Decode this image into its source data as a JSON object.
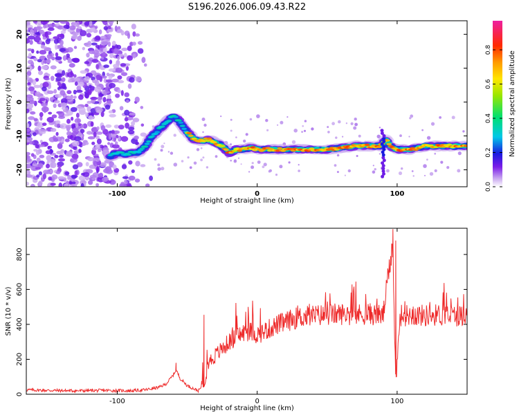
{
  "title": "S196.2026.006.09.43.R22",
  "chart_data": [
    {
      "type": "heatmap",
      "title": "S196.2026.006.09.43.R22",
      "xlabel": "Height of straight line (km)",
      "ylabel": "Frequency (Hz)",
      "xlim": [
        -165,
        150
      ],
      "ylim": [
        -25,
        24
      ],
      "xticks": [
        -100,
        0,
        100
      ],
      "yticks": [
        -20,
        -10,
        0,
        10,
        20
      ],
      "colorbar": {
        "label": "Normalized spectral amplitude",
        "range": [
          0,
          0.97
        ],
        "ticks": [
          0.0,
          0.2,
          0.4,
          0.6,
          0.8
        ]
      },
      "ridge": {
        "x": [
          -105,
          -100,
          -95,
          -90,
          -85,
          -80,
          -75,
          -70,
          -65,
          -60,
          -55,
          -50,
          -45,
          -40,
          -35,
          -30,
          -25,
          -20,
          -15,
          -10,
          -5,
          0,
          10,
          20,
          30,
          40,
          50,
          60,
          70,
          80,
          88,
          92,
          95,
          100,
          110,
          120,
          130,
          140,
          150
        ],
        "y": [
          -16,
          -15,
          -15.5,
          -15,
          -15,
          -13,
          -10,
          -8,
          -6,
          -4,
          -6,
          -9,
          -11,
          -11.5,
          -11,
          -12,
          -13,
          -15,
          -14,
          -14,
          -13.5,
          -14,
          -14,
          -14,
          -14,
          -14,
          -14,
          -13.5,
          -13,
          -13,
          -13,
          -11,
          -13,
          -14,
          -14,
          -13,
          -13,
          -13,
          -13
        ]
      },
      "noise_region_x": [
        -165,
        -75
      ]
    },
    {
      "type": "line",
      "xlabel": "Height of straight line (km)",
      "ylabel": "SNR (10 * v/v)",
      "xlim": [
        -165,
        150
      ],
      "ylim": [
        0,
        950
      ],
      "xticks": [
        -100,
        0,
        100
      ],
      "yticks": [
        0,
        200,
        400,
        600,
        800
      ],
      "series": [
        {
          "name": "SNR",
          "color": "#ee2a2a",
          "x": [
            -165,
            -150,
            -130,
            -110,
            -90,
            -80,
            -70,
            -65,
            -60,
            -58,
            -55,
            -50,
            -45,
            -42,
            -38,
            -35,
            -30,
            -25,
            -20,
            -15,
            -10,
            -5,
            0,
            5,
            10,
            15,
            20,
            25,
            30,
            40,
            50,
            60,
            70,
            80,
            90,
            94,
            97,
            99,
            102,
            110,
            120,
            130,
            140,
            150
          ],
          "y": [
            25,
            22,
            20,
            22,
            20,
            25,
            40,
            60,
            110,
            140,
            90,
            50,
            30,
            20,
            60,
            180,
            220,
            260,
            300,
            330,
            350,
            360,
            340,
            360,
            380,
            400,
            410,
            430,
            440,
            450,
            455,
            460,
            455,
            460,
            450,
            700,
            850,
            50,
            450,
            455,
            450,
            455,
            450,
            450
          ]
        }
      ],
      "spikes": [
        {
          "x": -38,
          "y": 455
        },
        {
          "x": 97,
          "y": 945
        },
        {
          "x": 99,
          "y": 880
        },
        {
          "x": -58,
          "y": 180
        }
      ]
    }
  ]
}
